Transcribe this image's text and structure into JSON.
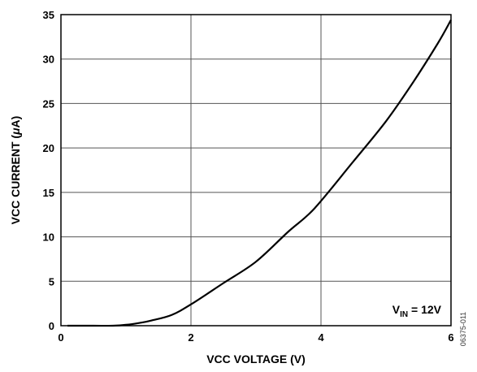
{
  "chart_data": {
    "type": "line",
    "xlabel": "VCC VOLTAGE (V)",
    "ylabel_parts": {
      "before": "VCC CURRENT (",
      "greek": "μ",
      "after": "A)"
    },
    "xlim": [
      0,
      6
    ],
    "ylim": [
      0,
      35
    ],
    "x_ticks": [
      0,
      2,
      4,
      6
    ],
    "y_ticks": [
      0,
      5,
      10,
      15,
      20,
      25,
      30,
      35
    ],
    "grid": true,
    "annotation": {
      "main": "V",
      "sub": "IN",
      "rest": " = 12V"
    },
    "figure_code": "06375-011",
    "line_color": "#000000",
    "series": [
      {
        "x": [
          0.1,
          0.5,
          0.8,
          1.0,
          1.2,
          1.4,
          1.7,
          2.0,
          2.5,
          3.0,
          3.5,
          3.9,
          4.5,
          5.0,
          5.4,
          5.8,
          6.0
        ],
        "y": [
          0.0,
          0.0,
          0.0,
          0.1,
          0.3,
          0.6,
          1.2,
          2.4,
          4.8,
          7.2,
          10.6,
          13.2,
          18.5,
          23.0,
          27.2,
          31.8,
          34.4
        ]
      }
    ]
  }
}
